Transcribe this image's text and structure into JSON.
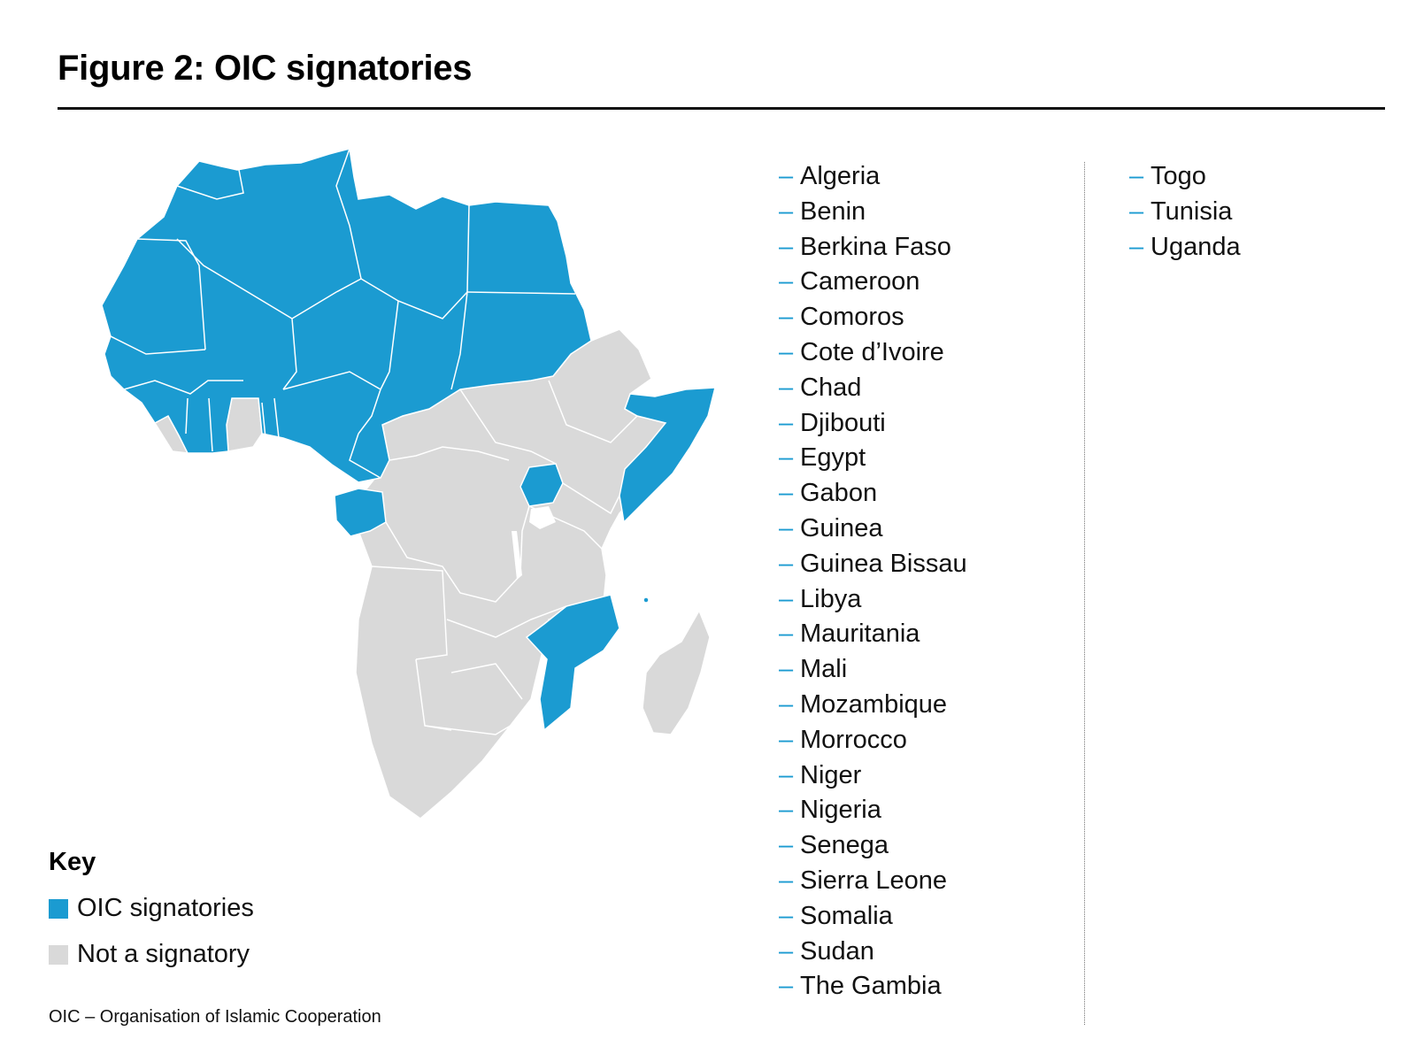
{
  "title": "Figure 2: OIC signatories",
  "colors": {
    "signatory": "#1b9bd1",
    "not_signatory": "#d9d9d9",
    "border": "#ffffff",
    "dash": "#1b9bd1"
  },
  "signatories_col1": [
    "Algeria",
    "Benin",
    "Berkina Faso",
    "Cameroon",
    "Comoros",
    "Cote d’Ivoire",
    "Chad",
    "Djibouti",
    "Egypt",
    "Gabon",
    "Guinea",
    "Guinea Bissau",
    "Libya",
    "Mauritania",
    "Mali",
    "Mozambique",
    "Morrocco",
    "Niger",
    "Nigeria",
    "Senega",
    "Sierra Leone",
    "Somalia",
    "Sudan",
    "The Gambia"
  ],
  "signatories_col2": [
    "Togo",
    "Tunisia",
    "Uganda"
  ],
  "key": {
    "title": "Key",
    "signatory_label": "OIC signatories",
    "not_signatory_label": "Not a signatory"
  },
  "footnote": "OIC – Organisation of Islamic Cooperation"
}
